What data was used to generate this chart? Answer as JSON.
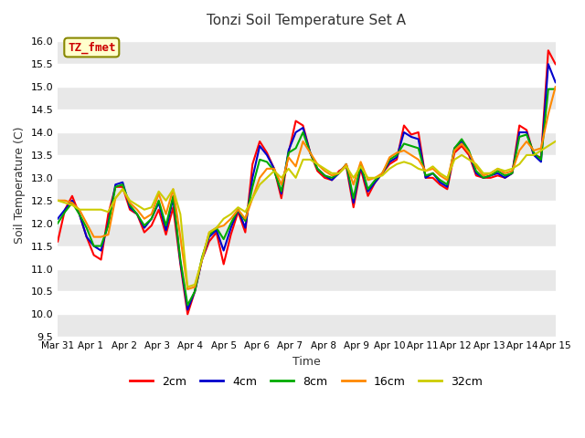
{
  "title": "Tonzi Soil Temperature Set A",
  "xlabel": "Time",
  "ylabel": "Soil Temperature (C)",
  "ylim": [
    9.5,
    16.2
  ],
  "fig_bg": "#ffffff",
  "plot_bg": "#ffffff",
  "legend_label": "TZ_fmet",
  "series": {
    "2cm": {
      "color": "#ff0000",
      "lw": 1.5
    },
    "4cm": {
      "color": "#0000cc",
      "lw": 1.5
    },
    "8cm": {
      "color": "#00aa00",
      "lw": 1.5
    },
    "16cm": {
      "color": "#ff8800",
      "lw": 1.5
    },
    "32cm": {
      "color": "#cccc00",
      "lw": 1.5
    }
  },
  "x_tick_labels": [
    "Mar 31",
    "Apr 1",
    "Apr 2",
    "Apr 3",
    "Apr 4",
    "Apr 5",
    "Apr 6",
    "Apr 7",
    "Apr 8",
    "Apr 9",
    "Apr 10",
    "Apr 11",
    "Apr 12",
    "Apr 13",
    "Apr 14",
    "Apr 15"
  ],
  "data_2cm": [
    11.6,
    12.3,
    12.6,
    12.2,
    11.7,
    11.3,
    11.2,
    12.2,
    12.8,
    12.8,
    12.3,
    12.2,
    11.8,
    11.95,
    12.3,
    11.75,
    12.35,
    11.1,
    10.0,
    10.5,
    11.2,
    11.6,
    11.8,
    11.1,
    11.75,
    12.25,
    11.8,
    13.3,
    13.8,
    13.55,
    13.2,
    12.55,
    13.55,
    14.25,
    14.15,
    13.55,
    13.15,
    13.0,
    12.95,
    13.15,
    13.25,
    12.35,
    13.2,
    12.6,
    12.9,
    13.1,
    13.3,
    13.4,
    14.15,
    13.95,
    14.0,
    13.0,
    13.0,
    12.85,
    12.75,
    13.55,
    13.7,
    13.5,
    13.05,
    13.0,
    13.0,
    13.05,
    13.0,
    13.1,
    14.15,
    14.05,
    13.5,
    13.45,
    15.8,
    15.5
  ],
  "data_4cm": [
    12.1,
    12.3,
    12.5,
    12.2,
    11.7,
    11.5,
    11.4,
    12.0,
    12.85,
    12.9,
    12.35,
    12.2,
    11.9,
    12.1,
    12.45,
    11.85,
    12.55,
    11.15,
    10.1,
    10.5,
    11.2,
    11.7,
    11.85,
    11.4,
    11.9,
    12.3,
    11.9,
    13.0,
    13.7,
    13.5,
    13.2,
    12.65,
    13.6,
    14.0,
    14.1,
    13.55,
    13.2,
    13.05,
    12.95,
    13.1,
    13.3,
    12.45,
    13.25,
    12.7,
    12.9,
    13.1,
    13.35,
    13.45,
    14.0,
    13.9,
    13.85,
    13.0,
    13.1,
    12.9,
    12.8,
    13.65,
    13.8,
    13.55,
    13.1,
    13.0,
    13.05,
    13.1,
    13.0,
    13.1,
    14.0,
    14.0,
    13.5,
    13.35,
    15.5,
    15.1
  ],
  "data_8cm": [
    12.0,
    12.25,
    12.45,
    12.2,
    11.9,
    11.5,
    11.5,
    11.95,
    12.8,
    12.85,
    12.4,
    12.2,
    11.95,
    12.1,
    12.5,
    11.95,
    12.6,
    11.2,
    10.2,
    10.5,
    11.25,
    11.75,
    11.9,
    11.65,
    12.0,
    12.3,
    12.05,
    12.8,
    13.4,
    13.35,
    13.15,
    12.7,
    13.55,
    13.65,
    14.0,
    13.55,
    13.2,
    13.05,
    13.0,
    13.1,
    13.3,
    12.55,
    13.3,
    12.75,
    12.95,
    13.1,
    13.4,
    13.5,
    13.75,
    13.7,
    13.65,
    13.05,
    13.1,
    12.95,
    12.85,
    13.65,
    13.85,
    13.6,
    13.15,
    13.0,
    13.05,
    13.15,
    13.05,
    13.1,
    13.9,
    13.95,
    13.55,
    13.4,
    14.95,
    14.95
  ],
  "data_16cm": [
    12.5,
    12.5,
    12.45,
    12.3,
    12.0,
    11.7,
    11.7,
    11.75,
    12.55,
    12.75,
    12.45,
    12.3,
    12.1,
    12.2,
    12.65,
    12.2,
    12.75,
    11.7,
    10.55,
    10.6,
    11.2,
    11.8,
    11.9,
    11.95,
    12.1,
    12.3,
    12.1,
    12.55,
    13.0,
    13.2,
    13.2,
    12.85,
    13.45,
    13.25,
    13.8,
    13.55,
    13.3,
    13.15,
    13.05,
    13.1,
    13.3,
    12.85,
    13.35,
    12.95,
    13.0,
    13.1,
    13.45,
    13.55,
    13.6,
    13.5,
    13.4,
    13.15,
    13.2,
    13.05,
    12.95,
    13.6,
    13.75,
    13.55,
    13.25,
    13.05,
    13.1,
    13.2,
    13.1,
    13.15,
    13.6,
    13.8,
    13.6,
    13.65,
    14.4,
    15.0
  ],
  "data_32cm": [
    12.5,
    12.45,
    12.4,
    12.3,
    12.3,
    12.3,
    12.3,
    12.25,
    12.55,
    12.75,
    12.5,
    12.4,
    12.3,
    12.35,
    12.7,
    12.5,
    12.75,
    12.2,
    10.6,
    10.65,
    11.2,
    11.8,
    11.9,
    12.1,
    12.2,
    12.35,
    12.25,
    12.55,
    12.85,
    13.0,
    13.15,
    13.0,
    13.2,
    13.0,
    13.4,
    13.4,
    13.3,
    13.2,
    13.1,
    13.1,
    13.25,
    13.0,
    13.25,
    13.0,
    13.0,
    13.05,
    13.2,
    13.3,
    13.35,
    13.3,
    13.2,
    13.15,
    13.25,
    13.1,
    13.0,
    13.4,
    13.5,
    13.4,
    13.3,
    13.1,
    13.1,
    13.2,
    13.15,
    13.2,
    13.3,
    13.5,
    13.5,
    13.6,
    13.7,
    13.8
  ]
}
